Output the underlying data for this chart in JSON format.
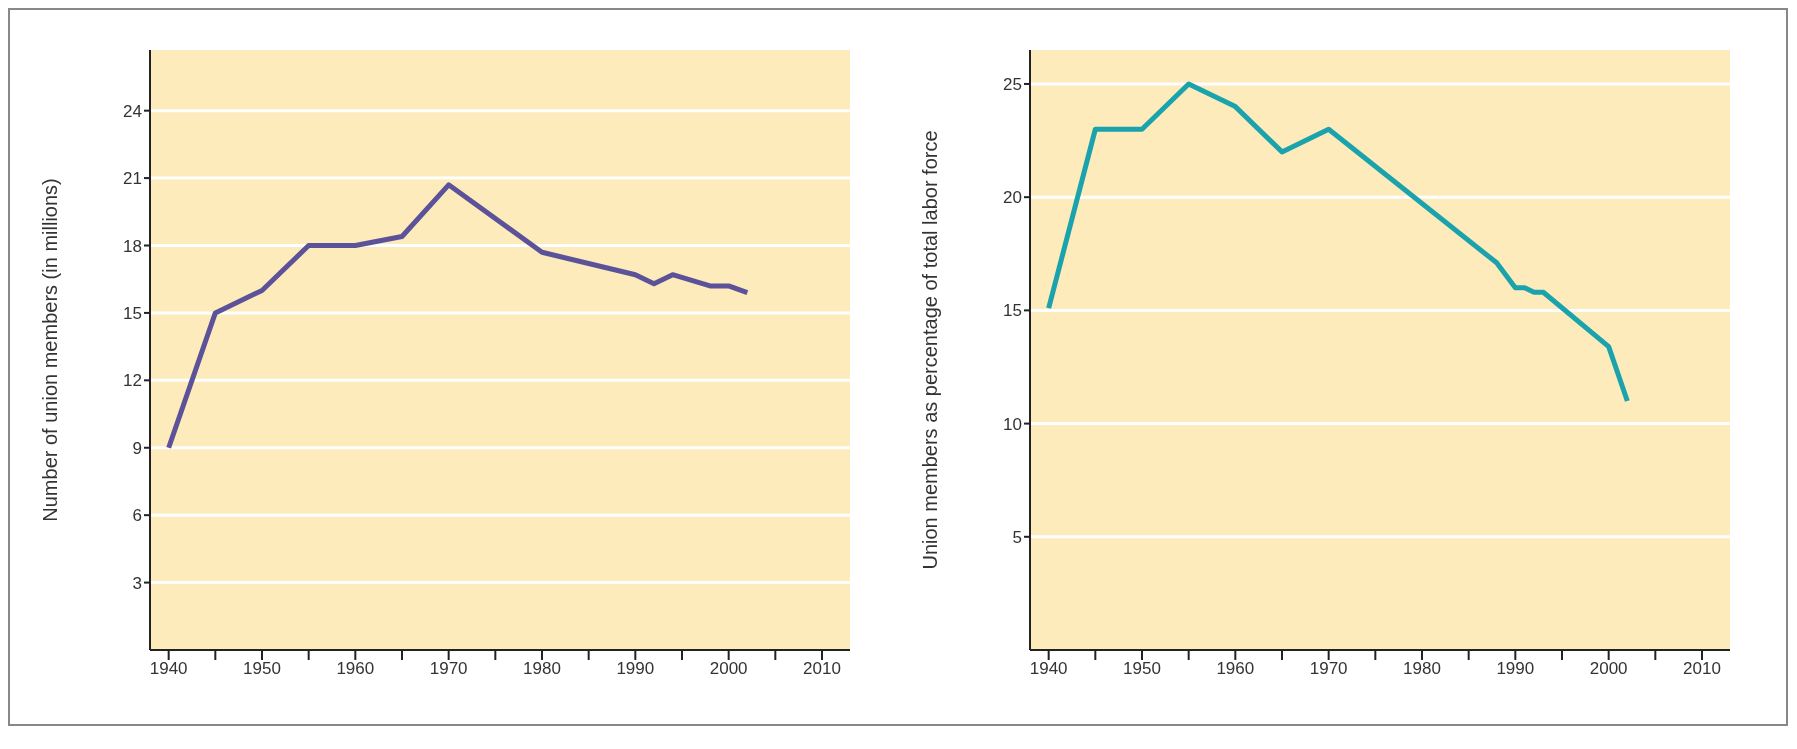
{
  "chart_data": [
    {
      "type": "line",
      "ylabel": "Number of union members (in millions)",
      "xlim": [
        1938,
        2013
      ],
      "ylim": [
        0,
        26.7
      ],
      "xticks": [
        1940,
        {
          "value": 1945,
          "label": null
        },
        1950,
        {
          "value": 1955,
          "label": null
        },
        1960,
        {
          "value": 1965,
          "label": null
        },
        1970,
        {
          "value": 1975,
          "label": null
        },
        1980,
        {
          "value": 1985,
          "label": null
        },
        1990,
        {
          "value": 1995,
          "label": null
        },
        2000,
        {
          "value": 2005,
          "label": null
        },
        2010
      ],
      "yticks": [
        3,
        6,
        9,
        12,
        15,
        18,
        21,
        24
      ],
      "grid": "y",
      "marker": "none",
      "line_style": "solid",
      "series": [
        {
          "color": "#5b5299",
          "x": [
            1940,
            1945,
            1950,
            1955,
            1960,
            1965,
            1970,
            1980,
            1990,
            1992,
            1994,
            1998,
            2000,
            2002
          ],
          "values": [
            9,
            15,
            16,
            18,
            18,
            18.4,
            20.7,
            17.7,
            16.7,
            16.3,
            16.7,
            16.2,
            16.2,
            15.9
          ]
        }
      ]
    },
    {
      "type": "line",
      "ylabel": "Union members as percentage of total labor force",
      "xlim": [
        1938,
        2013
      ],
      "ylim": [
        0,
        26.5
      ],
      "xticks": [
        1940,
        {
          "value": 1945,
          "label": null
        },
        1950,
        {
          "value": 1955,
          "label": null
        },
        1960,
        {
          "value": 1965,
          "label": null
        },
        1970,
        {
          "value": 1975,
          "label": null
        },
        1980,
        {
          "value": 1985,
          "label": null
        },
        1990,
        {
          "value": 1995,
          "label": null
        },
        2000,
        {
          "value": 2005,
          "label": null
        },
        2010
      ],
      "yticks": [
        5,
        10,
        15,
        20,
        25
      ],
      "grid": "y",
      "marker": "none",
      "line_style": "solid",
      "series": [
        {
          "color": "#1aa3ad",
          "x": [
            1940,
            1945,
            1950,
            1955,
            1960,
            1965,
            1970,
            1988,
            1990,
            1991,
            1992,
            1993,
            2000,
            2002
          ],
          "values": [
            15.1,
            23,
            23,
            25,
            24,
            22,
            23,
            17.1,
            16,
            16,
            15.8,
            15.8,
            13.4,
            11
          ]
        }
      ]
    }
  ]
}
